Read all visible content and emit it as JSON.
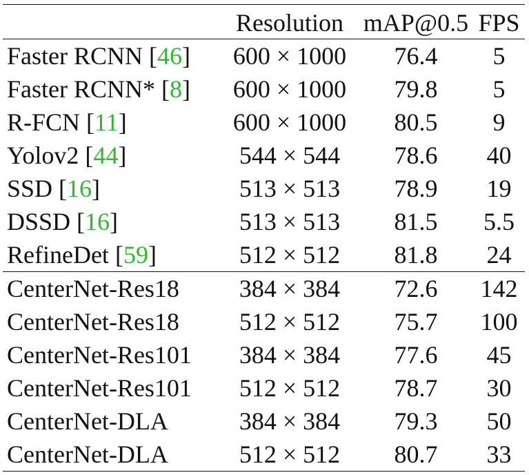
{
  "table": {
    "headers": [
      "",
      "Resolution",
      "mAP@0.5",
      "FPS"
    ],
    "rows": [
      {
        "method": "Faster RCNN",
        "cite": "46",
        "resolution": "600 × 1000",
        "map": "76.4",
        "fps": "5"
      },
      {
        "method": "Faster RCNN*",
        "cite": "8",
        "resolution": "600 × 1000",
        "map": "79.8",
        "fps": "5"
      },
      {
        "method": "R-FCN",
        "cite": "11",
        "resolution": "600 × 1000",
        "map": "80.5",
        "fps": "9"
      },
      {
        "method": "Yolov2",
        "cite": "44",
        "resolution": "544 × 544",
        "map": "78.6",
        "fps": "40"
      },
      {
        "method": "SSD",
        "cite": "16",
        "resolution": "513 × 513",
        "map": "78.9",
        "fps": "19"
      },
      {
        "method": "DSSD",
        "cite": "16",
        "resolution": "513 × 513",
        "map": "81.5",
        "fps": "5.5"
      },
      {
        "method": "RefineDet",
        "cite": "59",
        "resolution": "512 × 512",
        "map": "81.8",
        "fps": "24"
      },
      {
        "method": "CenterNet-Res18",
        "cite": "",
        "resolution": "384 × 384",
        "map": "72.6",
        "fps": "142"
      },
      {
        "method": "CenterNet-Res18",
        "cite": "",
        "resolution": "512 × 512",
        "map": "75.7",
        "fps": "100"
      },
      {
        "method": "CenterNet-Res101",
        "cite": "",
        "resolution": "384 × 384",
        "map": "77.6",
        "fps": "45"
      },
      {
        "method": "CenterNet-Res101",
        "cite": "",
        "resolution": "512 × 512",
        "map": "78.7",
        "fps": "30"
      },
      {
        "method": "CenterNet-DLA",
        "cite": "",
        "resolution": "384 × 384",
        "map": "79.3",
        "fps": "50"
      },
      {
        "method": "CenterNet-DLA",
        "cite": "",
        "resolution": "512 × 512",
        "map": "80.7",
        "fps": "33"
      }
    ]
  },
  "colors": {
    "citation": "#2db82d",
    "text": "#111111",
    "background": "#ffffff"
  }
}
